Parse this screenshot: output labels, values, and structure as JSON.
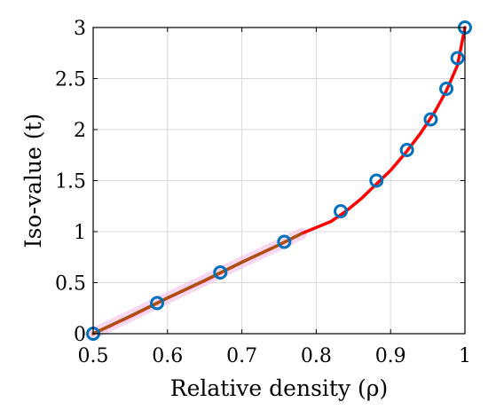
{
  "chart_data": {
    "type": "line",
    "xlabel": "Relative density (ρ)",
    "ylabel": "Iso-value (t)",
    "xlim": [
      0.5,
      1
    ],
    "ylim": [
      0,
      3
    ],
    "x_ticks": [
      "0.5",
      "0.6",
      "0.7",
      "0.8",
      "0.9",
      "1"
    ],
    "y_ticks": [
      "0",
      "0.5",
      "1",
      "1.5",
      "2",
      "2.5",
      "3"
    ],
    "grid": true,
    "legend": "none",
    "series": [
      {
        "kind": "markers",
        "marker": "circle",
        "color": "#0072BD",
        "points": [
          {
            "x": 0.5,
            "y": 0.0
          },
          {
            "x": 0.586,
            "y": 0.3
          },
          {
            "x": 0.671,
            "y": 0.6
          },
          {
            "x": 0.757,
            "y": 0.9
          },
          {
            "x": 0.833,
            "y": 1.2
          },
          {
            "x": 0.881,
            "y": 1.5
          },
          {
            "x": 0.922,
            "y": 1.8
          },
          {
            "x": 0.954,
            "y": 2.1
          },
          {
            "x": 0.975,
            "y": 2.4
          },
          {
            "x": 0.99,
            "y": 2.7
          },
          {
            "x": 1.0,
            "y": 3.0
          }
        ]
      },
      {
        "kind": "line",
        "color": "#FF0000",
        "points": [
          {
            "x": 0.5,
            "y": 0.0
          },
          {
            "x": 0.55,
            "y": 0.17
          },
          {
            "x": 0.6,
            "y": 0.35
          },
          {
            "x": 0.65,
            "y": 0.52
          },
          {
            "x": 0.7,
            "y": 0.7
          },
          {
            "x": 0.75,
            "y": 0.87
          },
          {
            "x": 0.78,
            "y": 0.98
          },
          {
            "x": 0.8,
            "y": 1.04
          },
          {
            "x": 0.82,
            "y": 1.1
          },
          {
            "x": 0.84,
            "y": 1.2
          },
          {
            "x": 0.86,
            "y": 1.32
          },
          {
            "x": 0.88,
            "y": 1.46
          },
          {
            "x": 0.9,
            "y": 1.6
          },
          {
            "x": 0.92,
            "y": 1.77
          },
          {
            "x": 0.94,
            "y": 1.96
          },
          {
            "x": 0.96,
            "y": 2.18
          },
          {
            "x": 0.975,
            "y": 2.38
          },
          {
            "x": 0.99,
            "y": 2.63
          },
          {
            "x": 1.0,
            "y": 3.0
          }
        ]
      },
      {
        "kind": "line",
        "color": "#6B8E23",
        "opacity": 0.55,
        "points": [
          {
            "x": 0.5,
            "y": 0.0
          },
          {
            "x": 0.6,
            "y": 0.35
          },
          {
            "x": 0.7,
            "y": 0.7
          },
          {
            "x": 0.75,
            "y": 0.87
          },
          {
            "x": 0.78,
            "y": 0.98
          }
        ]
      }
    ]
  }
}
